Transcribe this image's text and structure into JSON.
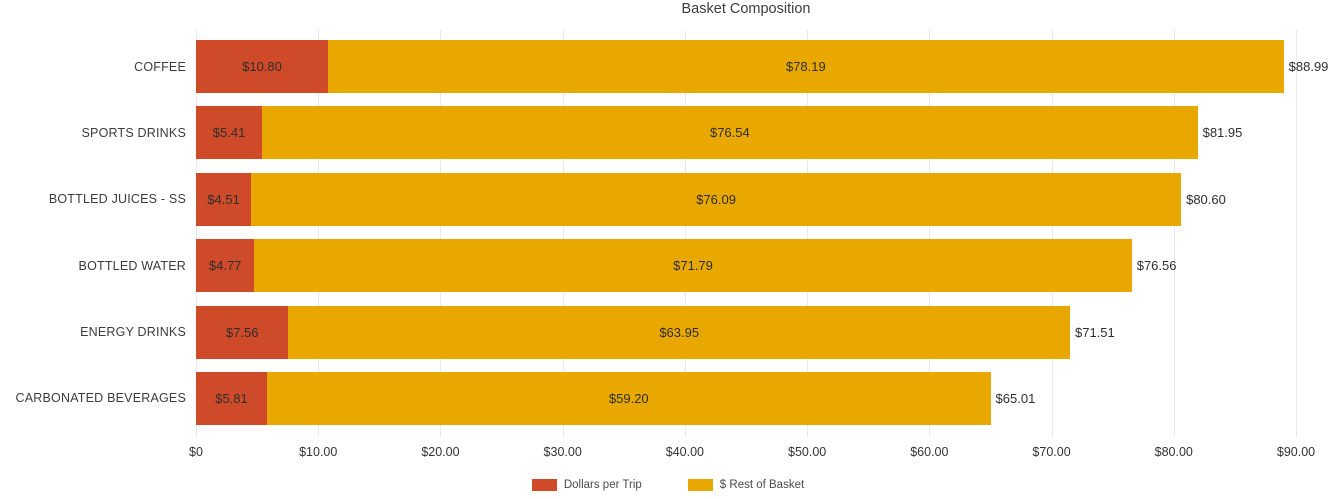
{
  "chart_data": {
    "type": "bar",
    "orientation": "horizontal",
    "stacked": true,
    "title": "Basket Composition",
    "categories": [
      "COFFEE",
      "SPORTS DRINKS",
      "BOTTLED JUICES - SS",
      "BOTTLED WATER",
      "ENERGY DRINKS",
      "CARBONATED BEVERAGES"
    ],
    "series": [
      {
        "name": "Dollars per Trip",
        "color": "#CF4A28",
        "values": [
          10.8,
          5.41,
          4.51,
          4.77,
          7.56,
          5.81
        ],
        "labels": [
          "$10.80",
          "$5.41",
          "$4.51",
          "$4.77",
          "$7.56",
          "$5.81"
        ]
      },
      {
        "name": "$ Rest of Basket",
        "color": "#E8A800",
        "values": [
          78.19,
          76.54,
          76.09,
          71.79,
          63.95,
          59.2
        ],
        "labels": [
          "$78.19",
          "$76.54",
          "$76.09",
          "$71.79",
          "$63.95",
          "$59.20"
        ]
      }
    ],
    "totals": [
      88.99,
      81.95,
      80.6,
      76.56,
      71.51,
      65.01
    ],
    "total_labels": [
      "$88.99",
      "$81.95",
      "$80.60",
      "$76.56",
      "$71.51",
      "$65.01"
    ],
    "x_ticks": [
      "$0",
      "$10.00",
      "$20.00",
      "$30.00",
      "$40.00",
      "$50.00",
      "$60.00",
      "$70.00",
      "$80.00",
      "$90.00"
    ],
    "x_tick_values": [
      0,
      10,
      20,
      30,
      40,
      50,
      60,
      70,
      80,
      90
    ],
    "xlim": [
      0,
      90
    ],
    "grid": true,
    "legend_position": "bottom",
    "colors": {
      "grid_line": "#e9e9e9",
      "text": "#3c3c3c"
    }
  }
}
